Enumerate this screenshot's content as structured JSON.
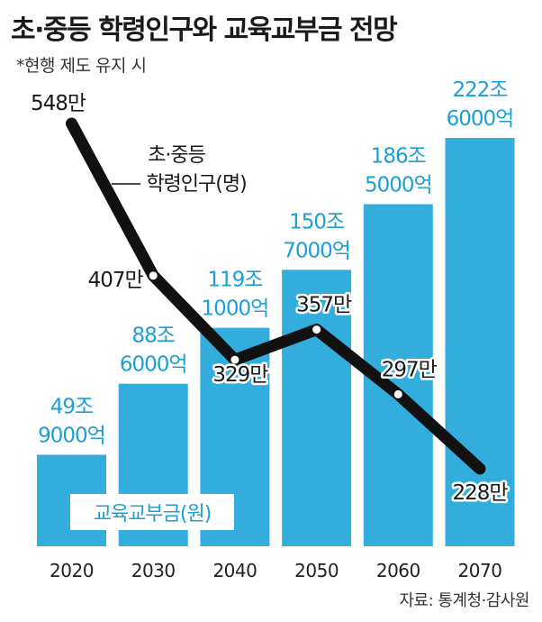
{
  "header": {
    "title": "초·중등 학령인구와 교육교부금 전망",
    "subtitle": "*현행 제도 유지 시"
  },
  "source": "자료: 통계청·감사원",
  "colors": {
    "bar": "#33aedc",
    "line": "#111111",
    "bar_label": "#1c9fd6"
  },
  "chart_data": {
    "type": "bar",
    "categories": [
      "2020",
      "2030",
      "2040",
      "2050",
      "2060",
      "2070"
    ],
    "series": [
      {
        "name": "교육교부금(원)",
        "type": "bar",
        "values": [
          499000,
          886000,
          1191000,
          1507000,
          1865000,
          2226000
        ],
        "labels": [
          [
            "49조",
            "9000억"
          ],
          [
            "88조",
            "6000억"
          ],
          [
            "119조",
            "1000억"
          ],
          [
            "150조",
            "7000억"
          ],
          [
            "186조",
            "5000억"
          ],
          [
            "222조",
            "6000억"
          ]
        ]
      },
      {
        "name": "초·중등 학령인구(명)",
        "type": "line",
        "values": [
          5480000,
          4070000,
          3290000,
          3570000,
          2970000,
          2280000
        ],
        "labels": [
          "548만",
          "407만",
          "329만",
          "357만",
          "297만",
          "228만"
        ]
      }
    ],
    "legend_label_line": [
      "초·중등",
      "학령인구(명)"
    ],
    "legend_label_bar": "교육교부금(원)",
    "ylim_bar": [
      0,
      2226000
    ],
    "ylim_line": [
      1500000,
      5600000
    ]
  }
}
